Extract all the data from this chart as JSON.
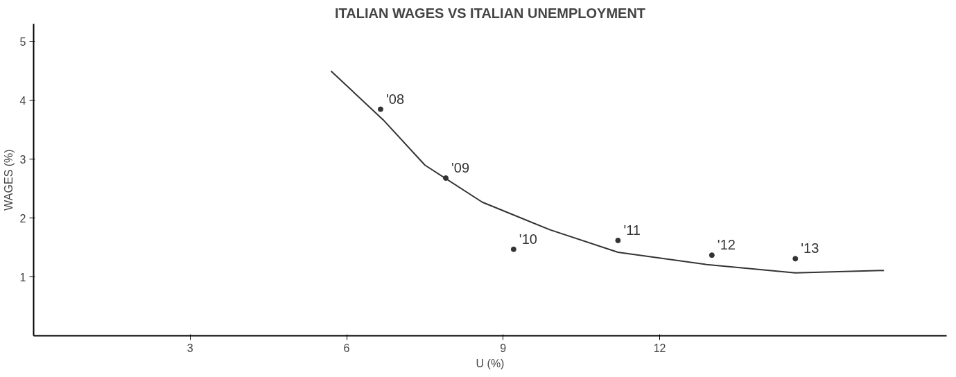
{
  "chart_data": {
    "type": "scatter",
    "title": "ITALIAN WAGES VS ITALIAN UNEMPLOYMENT",
    "xlabel": "U (%)",
    "ylabel": "WAGES (%)",
    "xlim": [
      0,
      17.5
    ],
    "ylim": [
      0,
      5.3
    ],
    "xticks": [
      3,
      6,
      9,
      12
    ],
    "yticks": [
      1,
      2,
      3,
      4,
      5
    ],
    "grid": false,
    "series": [
      {
        "marker": "circle",
        "color": "#333333",
        "x": [
          6.65,
          7.9,
          9.2,
          11.2,
          13.0,
          14.6
        ],
        "values": [
          3.85,
          2.68,
          1.47,
          1.62,
          1.37,
          1.31
        ]
      },
      {
        "type": "line",
        "color": "#333333",
        "x": [
          5.7,
          6.7,
          7.5,
          8.6,
          9.9,
          11.2,
          12.9,
          14.6,
          16.3
        ],
        "values": [
          4.5,
          3.67,
          2.9,
          2.27,
          1.8,
          1.42,
          1.21,
          1.07,
          1.11
        ]
      }
    ],
    "annotations": [
      {
        "text": "'08",
        "x": 6.65,
        "y": 3.85
      },
      {
        "text": "'09",
        "x": 7.9,
        "y": 2.68
      },
      {
        "text": "'10",
        "x": 9.2,
        "y": 1.47
      },
      {
        "text": "'11",
        "x": 11.2,
        "y": 1.62
      },
      {
        "text": "'12",
        "x": 13.0,
        "y": 1.37
      },
      {
        "text": "'13",
        "x": 14.6,
        "y": 1.31
      }
    ]
  }
}
